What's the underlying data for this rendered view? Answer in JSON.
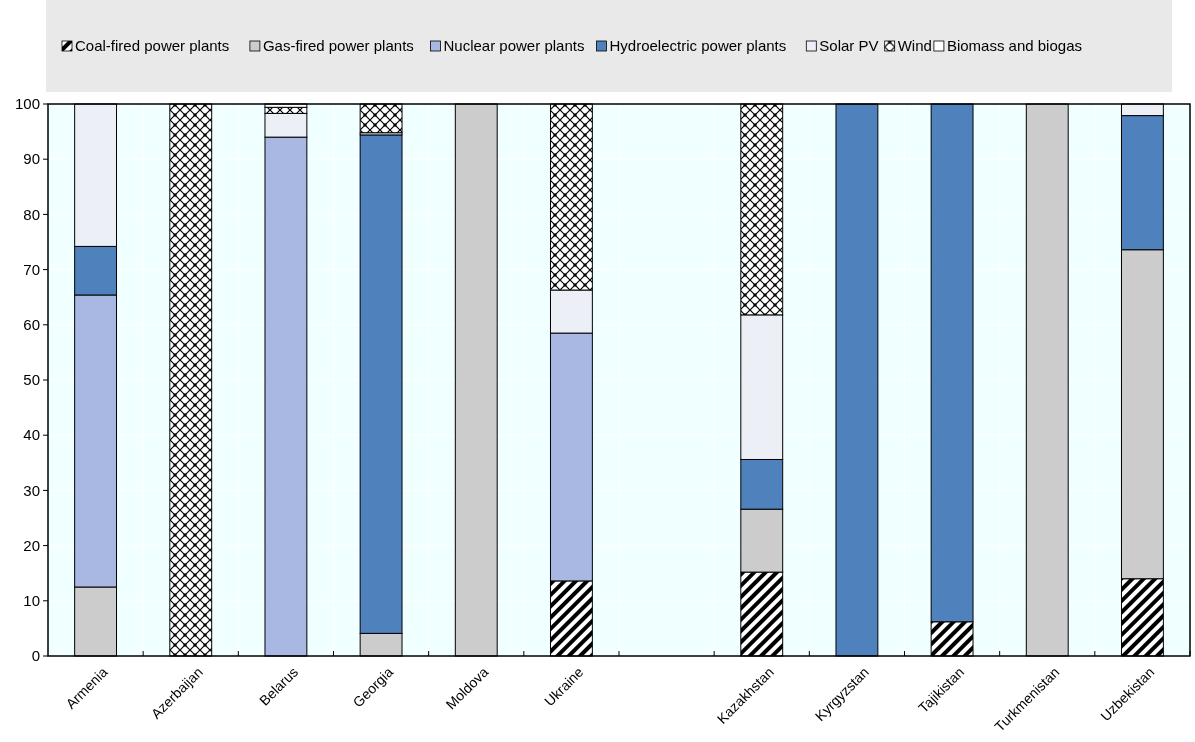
{
  "chart_data": {
    "type": "bar",
    "stacked": true,
    "legend": "top",
    "grid": true,
    "categories": [
      "Armenia",
      "Azerbaijan",
      "Belarus",
      "Georgia",
      "Moldova",
      "Ukraine",
      null,
      "Kazakhstan",
      "Kyrgyzstan",
      "Tajikistan",
      "Turkmenistan",
      "Uzbekistan"
    ],
    "ylim": [
      0,
      100
    ],
    "yticks": [
      0,
      10,
      20,
      30,
      40,
      50,
      60,
      70,
      80,
      90,
      100
    ],
    "series": [
      {
        "name": "Coal-fired power plants",
        "color": "#000000",
        "values": [
          null,
          null,
          null,
          null,
          null,
          13.6,
          null,
          15.2,
          null,
          6.2,
          null,
          14.0
        ]
      },
      {
        "name": "Gas-fired power plants",
        "color": "#cccccc",
        "values": [
          12.5,
          null,
          null,
          4.1,
          100,
          null,
          null,
          11.4,
          null,
          null,
          100,
          59.6
        ]
      },
      {
        "name": "Nuclear power plants",
        "color": "#a8b8e2",
        "values": [
          52.9,
          null,
          94.0,
          null,
          null,
          44.9,
          null,
          null,
          null,
          null,
          null,
          null
        ]
      },
      {
        "name": "Hydroelectric power plants",
        "color": "#4f81bd",
        "values": [
          8.8,
          null,
          null,
          90.3,
          null,
          null,
          null,
          9.0,
          100,
          93.8,
          null,
          24.3
        ]
      },
      {
        "name": "Solar PV",
        "color": "#eceff6",
        "values": [
          25.8,
          null,
          4.3,
          0.4,
          null,
          7.8,
          null,
          26.2,
          null,
          null,
          null,
          2.1
        ]
      },
      {
        "name": "Wind",
        "color": "#000000",
        "values": [
          null,
          100,
          1.1,
          5.2,
          null,
          33.7,
          null,
          38.2,
          null,
          null,
          null,
          null
        ]
      },
      {
        "name": "Biomass and biogas",
        "color": "#ffffff",
        "values": [
          null,
          null,
          0.6,
          null,
          null,
          null,
          null,
          null,
          null,
          null,
          null,
          null
        ]
      }
    ]
  }
}
